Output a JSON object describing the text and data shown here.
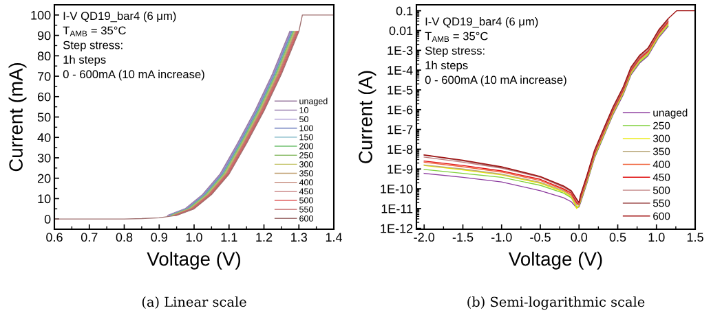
{
  "chart_data": [
    {
      "type": "line",
      "title": "(a) Linear scale",
      "xlabel": "Voltage (V)",
      "ylabel": "Current (mA)",
      "annotations": [
        "I-V QD19_bar4 (6 μm)",
        "T$_{AMB}$ = 35°C",
        "Step stress:",
        "1h steps",
        "0 - 600mA (10 mA increase)"
      ],
      "xlim": [
        0.6,
        1.4
      ],
      "ylim": [
        -5,
        105
      ],
      "xticks": [
        0.6,
        0.7,
        0.8,
        0.9,
        {
          "value": 1.0,
          "label": "1.0"
        },
        1.1,
        1.2,
        1.3,
        1.4
      ],
      "yticks": [
        0,
        10,
        20,
        30,
        40,
        50,
        60,
        70,
        80,
        90,
        100
      ],
      "grid": false,
      "legend": "bottom right",
      "marker": "none",
      "line_style": "solid",
      "series": [
        {
          "name": "unaged",
          "color": "#9a7aa0",
          "x": [
            0.924,
            0.974,
            1.024,
            1.074,
            1.124,
            1.174,
            1.224,
            1.274
          ],
          "values": [
            1.8,
            5,
            12,
            22,
            37,
            53,
            71,
            92
          ]
        },
        {
          "name": "10",
          "color": "#9a80b0",
          "x": [
            0.926,
            0.976,
            1.026,
            1.076,
            1.126,
            1.176,
            1.226,
            1.276
          ],
          "values": [
            1.8,
            5,
            12,
            22,
            37,
            53,
            71,
            92
          ]
        },
        {
          "name": "50",
          "color": "#a090d0",
          "x": [
            0.928,
            0.978,
            1.028,
            1.078,
            1.128,
            1.178,
            1.228,
            1.278
          ],
          "values": [
            1.8,
            5,
            12,
            22,
            37,
            53,
            71,
            92
          ]
        },
        {
          "name": "100",
          "color": "#7080c0",
          "x": [
            0.93,
            0.98,
            1.03,
            1.08,
            1.13,
            1.18,
            1.23,
            1.28
          ],
          "values": [
            1.8,
            5,
            12,
            22,
            37,
            53,
            71,
            92
          ]
        },
        {
          "name": "150",
          "color": "#70b0c0",
          "x": [
            0.932,
            0.982,
            1.032,
            1.082,
            1.132,
            1.182,
            1.232,
            1.282
          ],
          "values": [
            1.8,
            5,
            12,
            22,
            37,
            53,
            71,
            92
          ]
        },
        {
          "name": "200",
          "color": "#70c070",
          "x": [
            0.934,
            0.984,
            1.034,
            1.084,
            1.134,
            1.184,
            1.234,
            1.284
          ],
          "values": [
            1.8,
            5,
            12,
            22,
            37,
            53,
            71,
            92
          ]
        },
        {
          "name": "250",
          "color": "#90c070",
          "x": [
            0.936,
            0.986,
            1.036,
            1.086,
            1.136,
            1.186,
            1.236,
            1.286
          ],
          "values": [
            1.8,
            5,
            12,
            22,
            37,
            53,
            71,
            92
          ]
        },
        {
          "name": "300",
          "color": "#c0c060",
          "x": [
            0.938,
            0.988,
            1.038,
            1.088,
            1.138,
            1.188,
            1.238,
            1.288
          ],
          "values": [
            1.8,
            5,
            12,
            22,
            37,
            53,
            71,
            92
          ]
        },
        {
          "name": "350",
          "color": "#c0a070",
          "x": [
            0.94,
            0.99,
            1.04,
            1.09,
            1.14,
            1.19,
            1.24,
            1.29
          ],
          "values": [
            1.8,
            5,
            12,
            22,
            37,
            53,
            71,
            92
          ]
        },
        {
          "name": "400",
          "color": "#c08070",
          "x": [
            0.942,
            0.992,
            1.042,
            1.092,
            1.142,
            1.192,
            1.242,
            1.292
          ],
          "values": [
            1.8,
            5,
            12,
            22,
            37,
            53,
            71,
            92
          ]
        },
        {
          "name": "450",
          "color": "#c07070",
          "x": [
            0.944,
            0.994,
            1.044,
            1.094,
            1.144,
            1.194,
            1.244,
            1.294
          ],
          "values": [
            1.8,
            5,
            12,
            22,
            37,
            53,
            71,
            92
          ]
        },
        {
          "name": "500",
          "color": "#e06060",
          "x": [
            0.946,
            0.996,
            1.046,
            1.096,
            1.146,
            1.196,
            1.246,
            1.296
          ],
          "values": [
            1.8,
            5,
            12,
            22,
            37,
            53,
            71,
            92
          ]
        },
        {
          "name": "550",
          "color": "#c06060",
          "x": [
            0.948,
            0.998,
            1.048,
            1.098,
            1.148,
            1.198,
            1.248,
            1.298
          ],
          "values": [
            1.8,
            5,
            12,
            22,
            37,
            53,
            71,
            92
          ]
        },
        {
          "name": "600",
          "color": "#a07070",
          "x": [
            0.6,
            0.8,
            0.85,
            0.9,
            0.95,
            1.0,
            1.05,
            1.1,
            1.15,
            1.2,
            1.25,
            1.3,
            1.31,
            1.4
          ],
          "values": [
            0,
            0,
            0.2,
            0.6,
            1.8,
            5,
            12,
            22,
            37,
            53,
            71,
            92,
            100,
            100
          ]
        }
      ]
    },
    {
      "type": "line",
      "title": "(b) Semi-logarithmic scale",
      "xlabel": "Voltage (V)",
      "ylabel": "Current (A)",
      "annotations": [
        "I-V QD19_bar4 (6 μm)",
        "T$_{AMB}$ = 35°C",
        "Step stress:",
        "1h steps",
        "0 - 600mA (10 mA increase)"
      ],
      "log": "y",
      "xlim": [
        -2.1,
        1.5
      ],
      "ylim": [
        9e-13,
        0.2
      ],
      "xticks": [
        {
          "value": -2.0,
          "label": "-2.0"
        },
        {
          "value": -1.5,
          "label": "-1.5"
        },
        {
          "value": -1.0,
          "label": "-1.0"
        },
        {
          "value": -0.5,
          "label": "-0.5"
        },
        {
          "value": 0.0,
          "label": "0.0"
        },
        {
          "value": 0.5,
          "label": "0.5"
        },
        {
          "value": 1.0,
          "label": "1.0"
        },
        {
          "value": 1.5,
          "label": "1.5"
        }
      ],
      "yticks": [
        {
          "value": 1e-12,
          "label": "1E-12"
        },
        {
          "value": 1e-11,
          "label": "1E-11"
        },
        {
          "value": 1e-10,
          "label": "1E-10"
        },
        {
          "value": 1e-09,
          "label": "1E-9"
        },
        {
          "value": 1e-08,
          "label": "1E-8"
        },
        {
          "value": 1e-07,
          "label": "1E-7"
        },
        {
          "value": 1e-06,
          "label": "1E-6"
        },
        {
          "value": 1e-05,
          "label": "1E-5"
        },
        {
          "value": 0.0001,
          "label": "1E-4"
        },
        {
          "value": 0.001,
          "label": "1E-3"
        },
        {
          "value": 0.01,
          "label": "0.01"
        },
        {
          "value": 0.1,
          "label": "0.1"
        }
      ],
      "grid": false,
      "legend": "bottom right",
      "marker": "none",
      "line_style": "solid",
      "x": [
        -2,
        -1.5,
        -1,
        -0.5,
        -0.2,
        -0.1,
        -0.03,
        0,
        0.02,
        0.1,
        0.2,
        0.33,
        0.44,
        0.57,
        0.67,
        0.78,
        0.89,
        1.03,
        1.15,
        1.26,
        1.5
      ],
      "series": [
        {
          "name": "unaged",
          "color": "#8b3a9e",
          "values": [
            6e-10,
            3.8e-10,
            2.2e-10,
            8e-11,
            3.5e-11,
            2.2e-11,
            1.1e-11,
            1.2e-11,
            2e-11,
            1.8e-10,
            3.6e-09,
            5.6e-08,
            5.6e-07,
            5.6e-06,
            5.6e-05,
            0.00022,
            0.00052,
            0.0044,
            0.016,
            null,
            null
          ]
        },
        {
          "name": "250",
          "color": "#7fd13b",
          "values": [
            9.5e-10,
            6e-10,
            3.8e-10,
            1.5e-10,
            6e-11,
            3.5e-11,
            1.2e-11,
            1.3e-11,
            2.3e-11,
            2e-10,
            4e-09,
            6.3e-08,
            6.3e-07,
            6.3e-06,
            6.3e-05,
            0.00025,
            0.00059,
            0.005,
            0.018,
            null,
            null
          ]
        },
        {
          "name": "300",
          "color": "#e8e800",
          "values": [
            1.5e-09,
            9e-10,
            5e-10,
            1.9e-10,
            7e-11,
            4e-11,
            1e-11,
            1.4e-11,
            2.5e-11,
            2.3e-10,
            4.5e-09,
            7e-08,
            7e-07,
            7e-06,
            7e-05,
            0.00028,
            0.00065,
            0.0055,
            0.02,
            null,
            null
          ]
        },
        {
          "name": "350",
          "color": "#b8a77a",
          "values": [
            1.6e-09,
            1e-09,
            5.5e-10,
            2.1e-10,
            8e-11,
            4.5e-11,
            1.5e-11,
            1.5e-11,
            2.8e-11,
            2.5e-10,
            5e-09,
            7.8e-08,
            7.8e-07,
            7.8e-06,
            7.8e-05,
            0.00031,
            0.00073,
            0.0062,
            0.022,
            null,
            null
          ]
        },
        {
          "name": "400",
          "color": "#f0643c",
          "values": [
            2.2e-09,
            1.3e-09,
            7e-10,
            2.6e-10,
            9e-11,
            5e-11,
            1.8e-11,
            1.6e-11,
            3.2e-11,
            2.8e-10,
            5.7e-09,
            8.8e-08,
            8.8e-07,
            8.8e-06,
            8.8e-05,
            0.00035,
            0.00082,
            0.0069,
            0.025,
            null,
            null
          ]
        },
        {
          "name": "450",
          "color": "#e01010",
          "values": [
            2.5e-09,
            1.5e-09,
            8e-10,
            3e-10,
            1e-10,
            6e-11,
            2e-11,
            1.7e-11,
            3.5e-11,
            3.2e-10,
            6.3e-09,
            9.8e-08,
            9.8e-07,
            9.8e-06,
            9.8e-05,
            0.00039,
            0.00091,
            0.0077,
            0.028,
            null,
            null
          ]
        },
        {
          "name": "500",
          "color": "#c08080",
          "values": [
            4e-09,
            2.2e-09,
            1.1e-09,
            3.8e-10,
            1.2e-10,
            7e-11,
            2.5e-11,
            1.8e-11,
            4e-11,
            3.6e-10,
            7.1e-09,
            1.1e-07,
            1.1e-06,
            1.1e-05,
            0.00011,
            0.00043,
            0.001,
            0.0087,
            0.032,
            null,
            null
          ]
        },
        {
          "name": "550",
          "color": "#a05050",
          "values": [
            5e-09,
            2.6e-09,
            1.2e-09,
            4e-10,
            1.3e-10,
            7.5e-11,
            2.8e-11,
            1.9e-11,
            4.5e-11,
            4e-10,
            8e-09,
            1.2e-07,
            1.2e-06,
            1.2e-05,
            0.00012,
            0.00049,
            0.0012,
            0.0098,
            0.036,
            null,
            null
          ]
        },
        {
          "name": "600",
          "color": "#a01010",
          "values": [
            5.2e-09,
            2.8e-09,
            1.3e-09,
            4.2e-10,
            1.4e-10,
            8e-11,
            3e-11,
            2e-11,
            5e-11,
            4.5e-10,
            9e-09,
            1.4e-07,
            1.4e-06,
            1.4e-05,
            0.00014,
            0.00055,
            0.0013,
            0.011,
            0.04,
            0.1,
            0.1
          ]
        }
      ]
    }
  ]
}
